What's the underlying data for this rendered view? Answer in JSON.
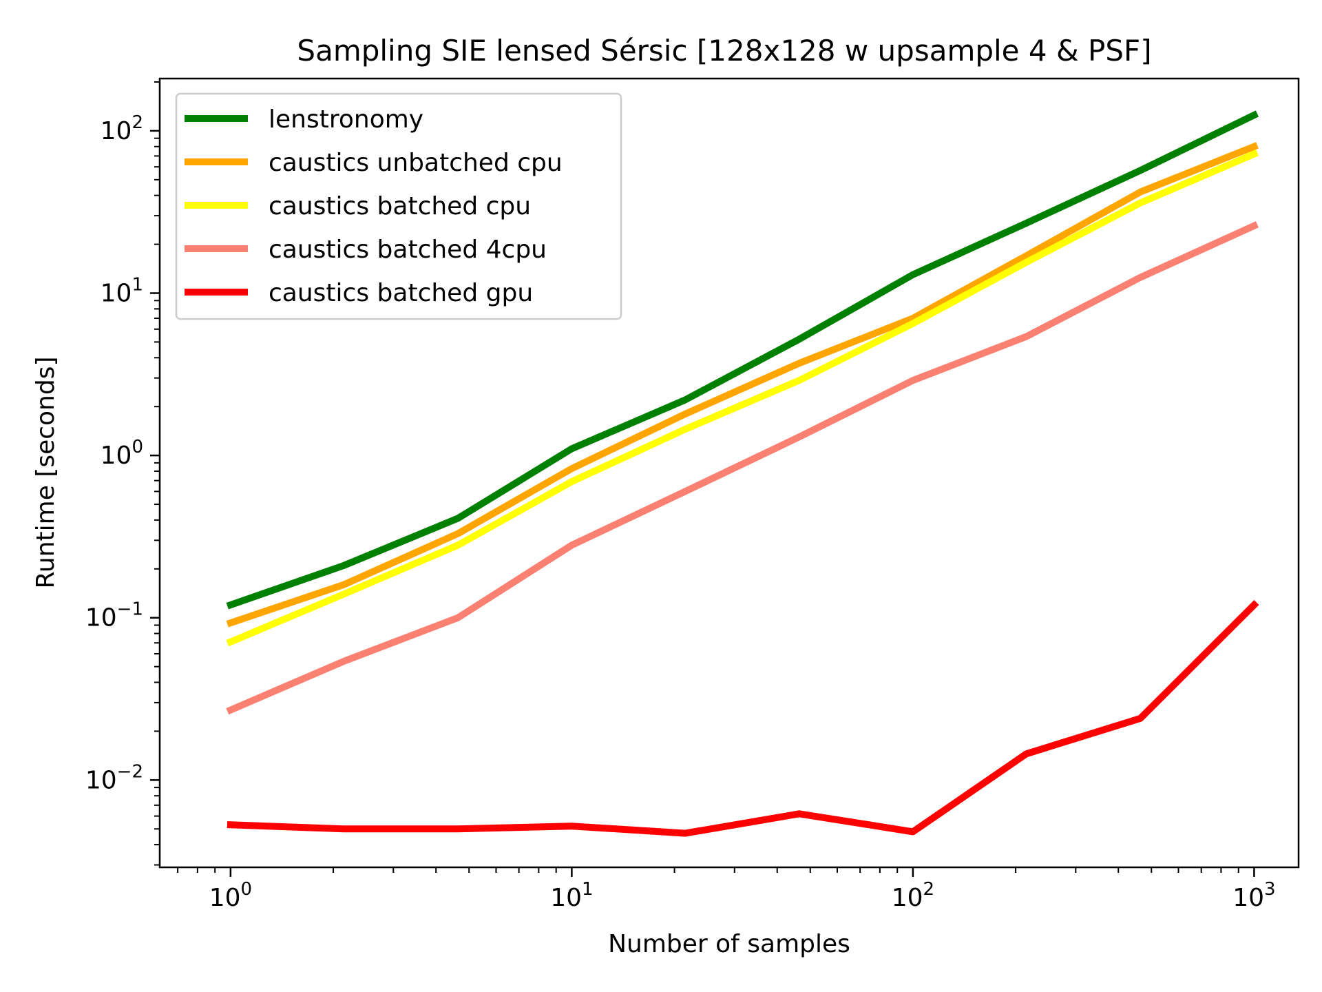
{
  "chart_data": {
    "type": "line",
    "title": "Sampling SIE lensed Sérsic [128x128 w upsample 4 & PSF]",
    "xlabel": "Number of samples",
    "ylabel": "Runtime [seconds]",
    "xscale": "log",
    "yscale": "log",
    "xlim": [
      0.62,
      1350
    ],
    "ylim": [
      0.0029,
      210
    ],
    "grid": false,
    "legend_position": "upper-left",
    "x_ticks": [
      {
        "base": "10",
        "exp": "0",
        "value": 1
      },
      {
        "base": "10",
        "exp": "1",
        "value": 10
      },
      {
        "base": "10",
        "exp": "2",
        "value": 100
      },
      {
        "base": "10",
        "exp": "3",
        "value": 1000
      }
    ],
    "y_ticks": [
      {
        "base": "10",
        "exp": "−2",
        "value": 0.01
      },
      {
        "base": "10",
        "exp": "−1",
        "value": 0.1
      },
      {
        "base": "10",
        "exp": "0",
        "value": 1
      },
      {
        "base": "10",
        "exp": "1",
        "value": 10
      },
      {
        "base": "10",
        "exp": "2",
        "value": 100
      }
    ],
    "x": [
      1,
      2.15,
      4.64,
      10,
      21.5,
      46.4,
      100,
      215,
      464,
      1000
    ],
    "series": [
      {
        "name": "lenstronomy",
        "color": "#008000",
        "values": [
          0.12,
          0.21,
          0.41,
          1.1,
          2.2,
          5.2,
          13,
          27,
          57,
          125
        ]
      },
      {
        "name": "caustics unbatched cpu",
        "color": "#ffa500",
        "values": [
          0.093,
          0.16,
          0.33,
          0.83,
          1.8,
          3.7,
          7,
          17,
          42,
          80
        ]
      },
      {
        "name": "caustics batched cpu",
        "color": "#ffff00",
        "values": [
          0.071,
          0.14,
          0.28,
          0.69,
          1.45,
          2.9,
          6.5,
          15.5,
          36,
          72
        ]
      },
      {
        "name": "caustics batched 4cpu",
        "color": "#fa8072",
        "values": [
          0.027,
          0.054,
          0.1,
          0.28,
          0.6,
          1.3,
          2.9,
          5.4,
          12.5,
          26
        ]
      },
      {
        "name": "caustics batched gpu",
        "color": "#ff0000",
        "values": [
          0.0053,
          0.005,
          0.005,
          0.0052,
          0.0047,
          0.0062,
          0.0048,
          0.0145,
          0.024,
          0.12
        ]
      }
    ]
  }
}
